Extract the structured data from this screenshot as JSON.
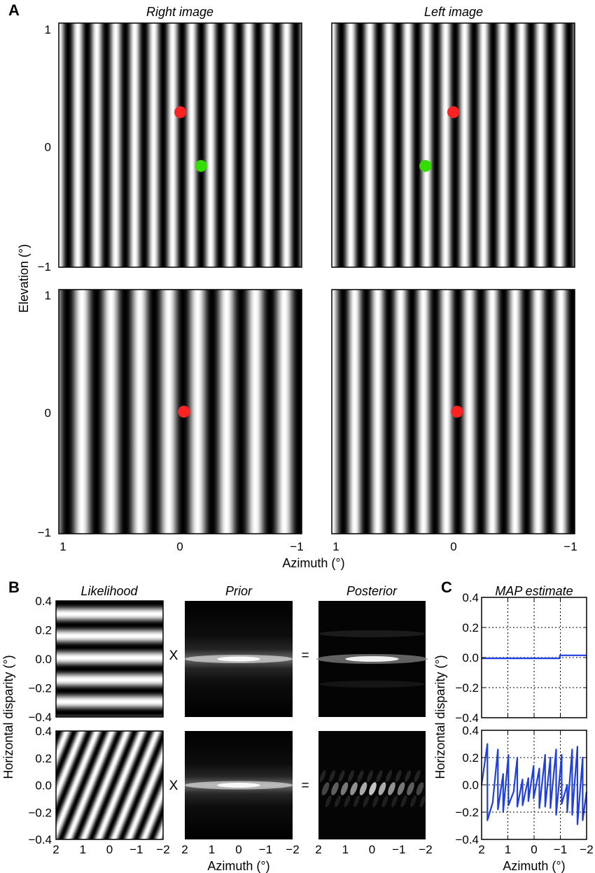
{
  "chart_data": [
    {
      "type": "heatmap",
      "panel": "A",
      "panel_label": "A",
      "column_titles": [
        "Right image",
        "Left image"
      ],
      "xlabel": "Azimuth (°)",
      "ylabel": "Elevation (°)",
      "xlim": [
        1,
        -1
      ],
      "ylim": [
        -1,
        1
      ],
      "x_ticks": [
        "1",
        "0",
        "−1"
      ],
      "y_ticks": [
        "1",
        "0",
        "−1"
      ],
      "rows": [
        {
          "right": {
            "grating_cycles_per_deg": 6.4,
            "phase": 0.0
          },
          "left": {
            "grating_cycles_per_deg": 6.4,
            "phase": 0.0
          },
          "points": [
            {
              "image": "right",
              "azimuth": 0.0,
              "elevation": 0.27,
              "color": "#ff2222"
            },
            {
              "image": "right",
              "azimuth": -0.17,
              "elevation": -0.17,
              "color": "#33dd00"
            },
            {
              "image": "left",
              "azimuth": 0.0,
              "elevation": 0.27,
              "color": "#ff2222"
            },
            {
              "image": "left",
              "azimuth": 0.23,
              "elevation": -0.17,
              "color": "#33dd00"
            }
          ]
        },
        {
          "right": {
            "grating_cycles_per_deg": 4.2,
            "phase": 0.2
          },
          "left": {
            "grating_cycles_per_deg": 5.3,
            "phase": 0.0
          },
          "points": [
            {
              "image": "right",
              "azimuth": -0.03,
              "elevation": 0.0,
              "color": "#ff2222"
            },
            {
              "image": "left",
              "azimuth": -0.03,
              "elevation": 0.0,
              "color": "#ff2222"
            }
          ]
        }
      ]
    },
    {
      "type": "heatmap",
      "panel": "B",
      "panel_label": "B",
      "column_titles": [
        "Likelihood",
        "Prior",
        "Posterior"
      ],
      "operators": [
        "X",
        "="
      ],
      "xlabel": "Azimuth (°)",
      "ylabel": "Horizontal disparity (°)",
      "xlim": [
        2,
        -2
      ],
      "ylim": [
        -0.4,
        0.4
      ],
      "x_ticks": [
        "2",
        "1",
        "0",
        "−1",
        "−2"
      ],
      "y_ticks": [
        "0.4",
        "0.2",
        "0.0",
        "−0.2",
        "−0.4"
      ],
      "rows": [
        {
          "likelihood": "horizontal stripes",
          "stripe_period_disparity": 0.15
        },
        {
          "likelihood": "oblique stripes",
          "stripe_period_azimuth": 0.55
        }
      ]
    },
    {
      "type": "line",
      "panel": "C",
      "panel_label": "C",
      "title": "MAP estimate",
      "xlabel": "Azimuth (°)",
      "ylabel": "Horizontal disparity (°)",
      "xlim": [
        2,
        -2
      ],
      "ylim": [
        -0.4,
        0.4
      ],
      "x_ticks": [
        "2",
        "1",
        "0",
        "−1",
        "−2"
      ],
      "y_ticks": [
        "0.4",
        "0.2",
        "0.0",
        "−0.2",
        "−0.4"
      ],
      "grid": true,
      "grid_x": [
        1,
        0,
        -1
      ],
      "grid_y": [
        0.2,
        0.0,
        -0.2
      ],
      "line_color": "#1f3fe0",
      "rows": [
        {
          "x": [
            2.0,
            -0.98,
            -0.98,
            -1.1,
            -2.0
          ],
          "y": [
            -0.005,
            -0.005,
            0.015,
            0.015,
            0.015
          ]
        },
        {
          "x": [
            2.0,
            1.78,
            1.78,
            1.58,
            1.38,
            1.38,
            1.18,
            1.18,
            0.98,
            0.98,
            0.78,
            0.64,
            0.64,
            0.44,
            0.44,
            0.22,
            0.22,
            0.02,
            0.02,
            -0.2,
            -0.2,
            -0.42,
            -0.42,
            -0.62,
            -0.62,
            -0.84,
            -0.84,
            -1.05,
            -1.05,
            -1.26,
            -1.26,
            -1.45,
            -1.45,
            -1.65,
            -1.65,
            -1.85,
            -1.85,
            -2.0
          ],
          "y": [
            0.0,
            0.3,
            -0.26,
            -0.13,
            0.26,
            -0.18,
            0.08,
            -0.2,
            0.22,
            -0.15,
            -0.05,
            0.2,
            -0.16,
            0.04,
            -0.15,
            0.05,
            -0.12,
            0.14,
            -0.1,
            0.12,
            -0.17,
            0.22,
            -0.16,
            0.2,
            -0.17,
            0.26,
            -0.22,
            0.22,
            -0.14,
            0.0,
            -0.2,
            0.26,
            -0.22,
            0.28,
            -0.29,
            0.2,
            -0.26,
            -0.05
          ]
        }
      ]
    }
  ]
}
